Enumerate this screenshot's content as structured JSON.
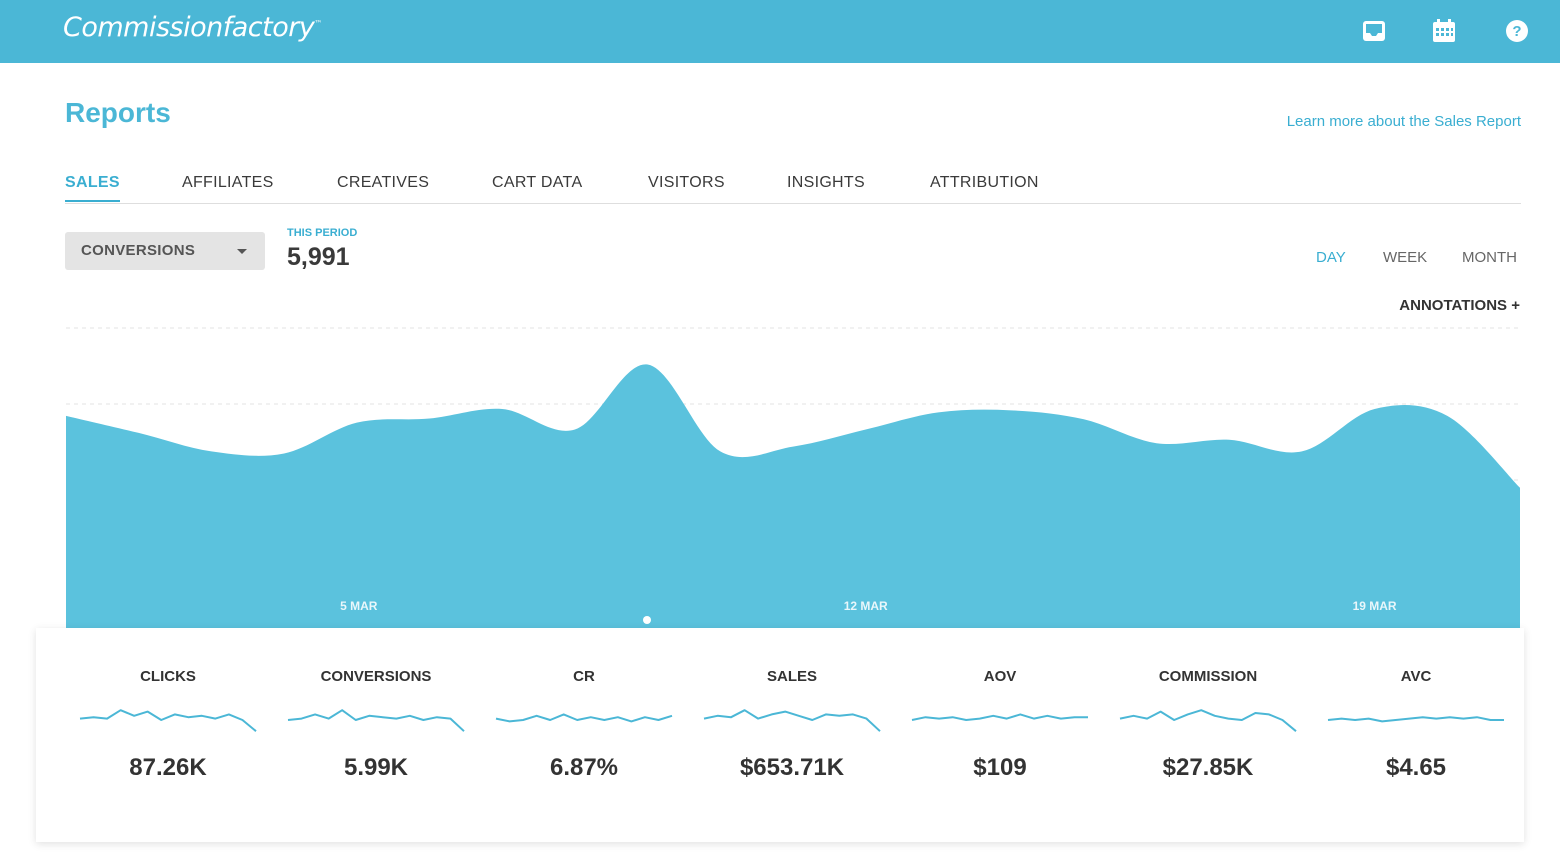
{
  "brand": {
    "logo_text": "Commissionfactory",
    "tm": "™",
    "accent": "#4bb7d6"
  },
  "header_icons": [
    "inbox-icon",
    "calendar-icon",
    "help-icon"
  ],
  "page": {
    "title": "Reports",
    "learn_more": "Learn more about the Sales Report"
  },
  "tabs": [
    {
      "label": "SALES",
      "active": true
    },
    {
      "label": "AFFILIATES"
    },
    {
      "label": "CREATIVES"
    },
    {
      "label": "CART DATA"
    },
    {
      "label": "VISITORS"
    },
    {
      "label": "INSIGHTS"
    },
    {
      "label": "ATTRIBUTION"
    }
  ],
  "metric_select": {
    "selected": "CONVERSIONS"
  },
  "period": {
    "label": "THIS PERIOD",
    "value": "5,991"
  },
  "ranges": [
    {
      "label": "DAY",
      "active": true
    },
    {
      "label": "WEEK"
    },
    {
      "label": "MONTH"
    }
  ],
  "annotations_label": "ANNOTATIONS +",
  "chart_data": {
    "type": "area",
    "series": [
      {
        "values": [
          310,
          285,
          258,
          255,
          300,
          306,
          320,
          290,
          385,
          258,
          265,
          290,
          315,
          318,
          305,
          270,
          275,
          258,
          320,
          310,
          205
        ]
      }
    ],
    "tick_labels": [
      "5 MAR",
      "12 MAR",
      "19 MAR"
    ],
    "ylim": [
      0,
      450
    ],
    "grid": true,
    "color": "#5bc2dd"
  },
  "stats": [
    {
      "label": "CLICKS",
      "value": "87.26K",
      "spark": [
        3,
        4,
        3,
        9,
        5,
        8,
        2,
        6,
        4,
        5,
        3,
        6,
        2,
        -6
      ]
    },
    {
      "label": "CONVERSIONS",
      "value": "5.99K",
      "spark": [
        2,
        3,
        6,
        3,
        9,
        2,
        5,
        4,
        3,
        5,
        2,
        4,
        3,
        -6
      ]
    },
    {
      "label": "CR",
      "value": "6.87%",
      "spark": [
        3,
        1,
        2,
        5,
        2,
        6,
        2,
        4,
        2,
        4,
        1,
        4,
        2,
        5
      ]
    },
    {
      "label": "SALES",
      "value": "$653.71K",
      "spark": [
        3,
        5,
        4,
        9,
        3,
        6,
        8,
        5,
        2,
        6,
        5,
        6,
        3,
        -6
      ]
    },
    {
      "label": "AOV",
      "value": "$109",
      "spark": [
        2,
        4,
        3,
        4,
        2,
        3,
        5,
        3,
        6,
        3,
        5,
        3,
        4,
        4
      ]
    },
    {
      "label": "COMMISSION",
      "value": "$27.85K",
      "spark": [
        3,
        5,
        3,
        8,
        2,
        6,
        9,
        5,
        3,
        2,
        7,
        6,
        2,
        -6
      ]
    },
    {
      "label": "AVC",
      "value": "$4.65",
      "spark": [
        2,
        3,
        2,
        3,
        1,
        2,
        3,
        4,
        3,
        4,
        3,
        4,
        2,
        2
      ]
    }
  ]
}
